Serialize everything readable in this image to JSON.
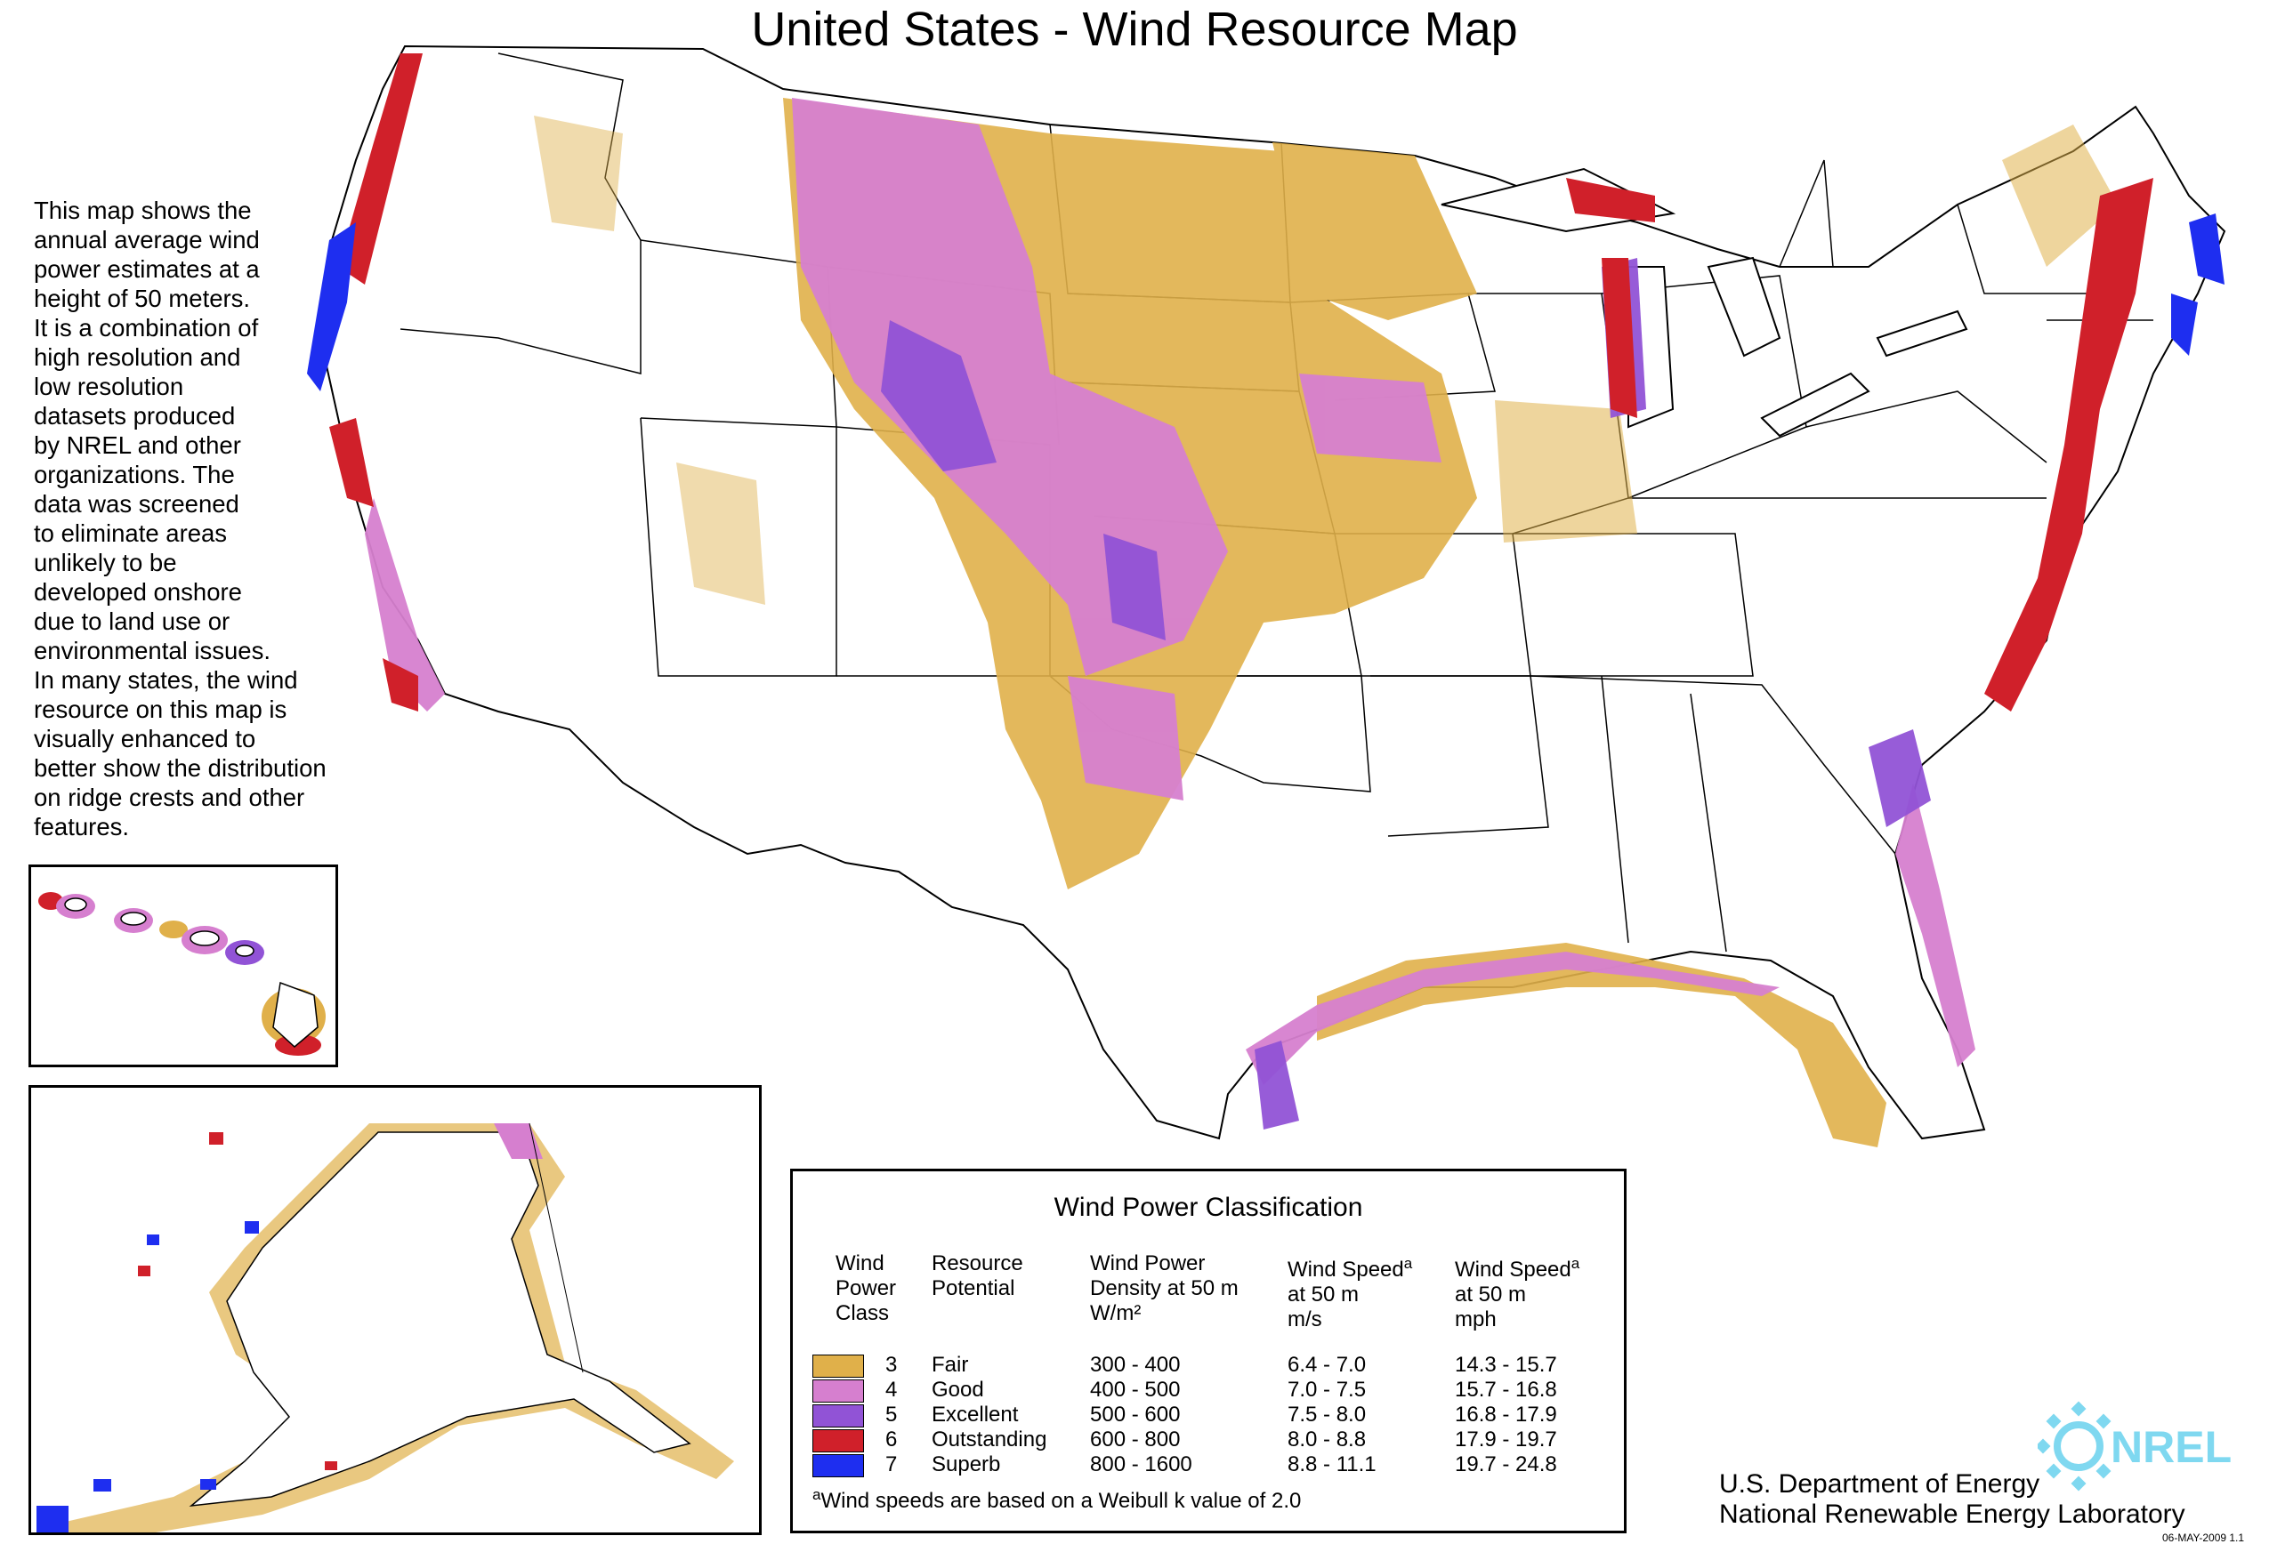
{
  "title": "United States - Wind Resource Map",
  "description_lines": [
    "This map shows the",
    "annual average wind",
    "power estimates at a",
    "height of 50 meters.",
    "It is a combination of",
    "high resolution and",
    "low resolution",
    "datasets produced",
    "by NREL and other",
    "organizations.  The",
    "data was screened",
    "to eliminate areas",
    "unlikely to be",
    "developed onshore",
    "due to land use or",
    "environmental  issues.",
    "In many states, the wind",
    "resource on this map is",
    "visually enhanced to",
    "better show the distribution",
    "on ridge crests and other",
    "features."
  ],
  "legend": {
    "title": "Wind Power Classification",
    "headers": {
      "class": [
        "Wind",
        "Power",
        "Class"
      ],
      "potential": [
        "Resource",
        "Potential"
      ],
      "density": [
        "Wind Power",
        "Density at 50 m",
        "W/m²"
      ],
      "speed_ms": [
        "Wind Speed",
        "at 50 m",
        "m/s"
      ],
      "speed_mph": [
        "Wind Speed",
        "at 50 m",
        "mph"
      ],
      "footnote_mark": "a"
    },
    "rows": [
      {
        "class": "3",
        "potential": "Fair",
        "density": "300 -  400",
        "speed_ms": "6.4 -  7.0",
        "speed_mph": "14.3 - 15.7",
        "color": "#e0b04a"
      },
      {
        "class": "4",
        "potential": "Good",
        "density": "400 -  500",
        "speed_ms": "7.0 -  7.5",
        "speed_mph": "15.7 - 16.8",
        "color": "#d67fcf"
      },
      {
        "class": "5",
        "potential": "Excellent",
        "density": "500 -  600",
        "speed_ms": "7.5 -  8.0",
        "speed_mph": "16.8 - 17.9",
        "color": "#9153d6"
      },
      {
        "class": "6",
        "potential": "Outstanding",
        "density": "600 -  800",
        "speed_ms": "8.0 -  8.8",
        "speed_mph": "17.9 - 19.7",
        "color": "#d0202a"
      },
      {
        "class": "7",
        "potential": "Superb",
        "density": "800 - 1600",
        "speed_ms": "8.8 - 11.1",
        "speed_mph": "19.7 - 24.8",
        "color": "#1e2ef0"
      }
    ],
    "footnote_mark": "a",
    "footnote": "Wind speeds are based on a Weibull k value of 2.0"
  },
  "credit": {
    "line1": "U.S. Department of Energy",
    "line2": "National Renewable Energy Laboratory"
  },
  "logo": {
    "text": "NREL",
    "icon": "nrel-sun-logo",
    "color": "#7fd8f0"
  },
  "date_stamp": "06-MAY-2009 1.1"
}
